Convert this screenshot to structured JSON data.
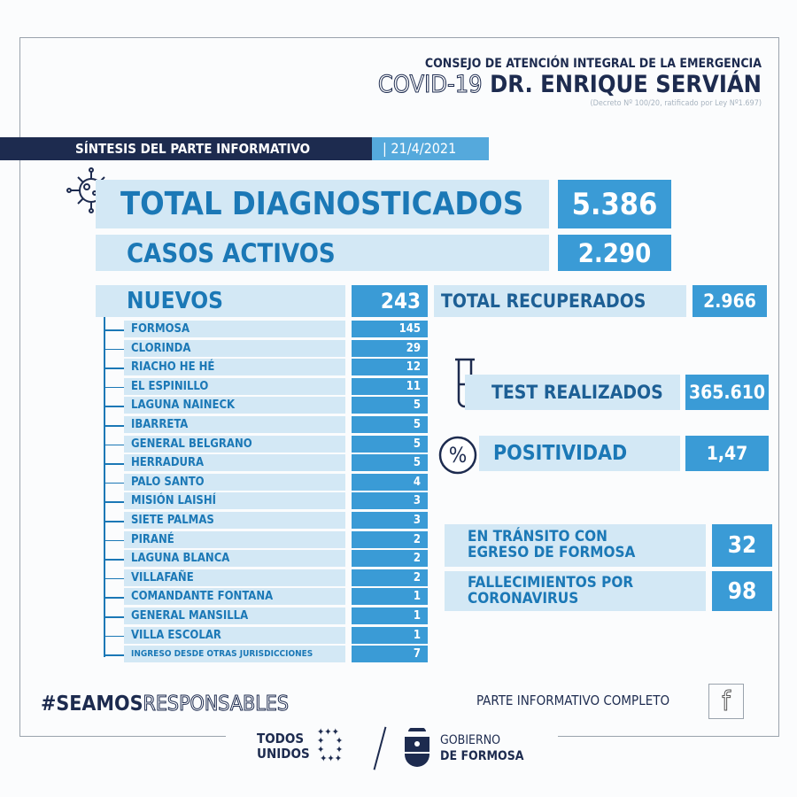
{
  "header": {
    "line1": "CONSEJO DE ATENCIÓN INTEGRAL DE LA EMERGENCIA",
    "covid": "COVID-19",
    "name": "DR. ENRIQUE SERVIÁN",
    "decree": "(Decreto Nº 100/20, ratificado por Ley Nº1.697)"
  },
  "banner": {
    "title": "SÍNTESIS DEL PARTE INFORMATIVO",
    "date": "| 21/4/2021"
  },
  "total": {
    "label": "TOTAL DIAGNOSTICADOS",
    "value": "5.386",
    "icon": "virus-icon"
  },
  "activos": {
    "label": "CASOS ACTIVOS",
    "value": "2.290"
  },
  "nuevos": {
    "label": "NUEVOS",
    "value": "243",
    "rows": [
      {
        "name": "FORMOSA",
        "value": "145"
      },
      {
        "name": "CLORINDA",
        "value": "29"
      },
      {
        "name": "RIACHO HE HÉ",
        "value": "12"
      },
      {
        "name": "EL ESPINILLO",
        "value": "11"
      },
      {
        "name": "LAGUNA NAINECK",
        "value": "5"
      },
      {
        "name": "IBARRETA",
        "value": "5"
      },
      {
        "name": "GENERAL BELGRANO",
        "value": "5"
      },
      {
        "name": "HERRADURA",
        "value": "5"
      },
      {
        "name": "PALO SANTO",
        "value": "4"
      },
      {
        "name": "MISIÓN LAISHÍ",
        "value": "3"
      },
      {
        "name": "SIETE PALMAS",
        "value": "3"
      },
      {
        "name": "PIRANÉ",
        "value": "2"
      },
      {
        "name": "LAGUNA BLANCA",
        "value": "2"
      },
      {
        "name": "VILLAFAÑE",
        "value": "2"
      },
      {
        "name": "COMANDANTE FONTANA",
        "value": "1"
      },
      {
        "name": "GENERAL MANSILLA",
        "value": "1"
      },
      {
        "name": "VILLA ESCOLAR",
        "value": "1"
      },
      {
        "name": "INGRESO DESDE OTRAS JURISDICCIONES",
        "value": "7"
      }
    ]
  },
  "recuperados": {
    "label": "TOTAL RECUPERADOS",
    "value": "2.966"
  },
  "tests": {
    "label": "TEST REALIZADOS",
    "value": "365.610",
    "icon": "test-tube-icon"
  },
  "positividad": {
    "label": "POSITIVIDAD",
    "value": "1,47",
    "icon": "percent-icon"
  },
  "transito": {
    "line1": "EN TRÁNSITO CON",
    "line2": "EGRESO DE FORMOSA",
    "value": "32"
  },
  "fallecimientos": {
    "line1": "FALLECIMIENTOS POR",
    "line2": "CORONAVIRUS",
    "value": "98"
  },
  "footer": {
    "hashtag_bold": "#SEAMOS",
    "hashtag_outline": "RESPONSABLES",
    "parte": "PARTE INFORMATIVO COMPLETO",
    "fb": "f",
    "todos": "TODOS",
    "unidos": "UNIDOS",
    "gob1": "GOBIERNO",
    "gob2": "DE FORMOSA"
  },
  "colors": {
    "navy": "#1d2b4f",
    "blue": "#3a9bd6",
    "light": "#d3e8f5",
    "text": "#1b78b6"
  }
}
